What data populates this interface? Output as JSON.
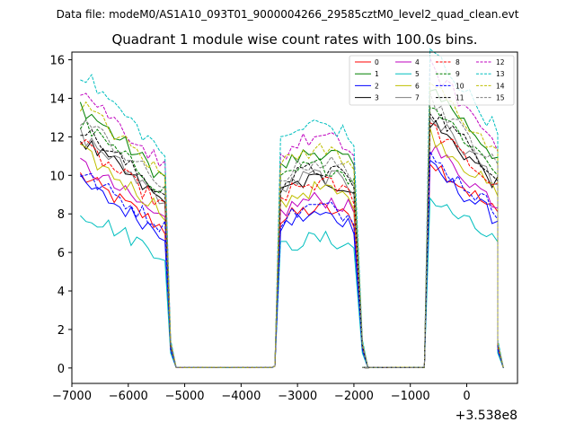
{
  "header_text": "Data file: modeM0/AS1A10_093T01_9000004266_29585cztM0_level2_quad_clean.evt",
  "chart_data": {
    "type": "line",
    "title": "Quadrant 1 module wise count rates with 100.0s bins.",
    "xlabel": "",
    "ylabel": "",
    "x_offset_label": "+3.538e8",
    "xlim": [
      -7000,
      900
    ],
    "ylim": [
      -0.8,
      16.4
    ],
    "x_ticks": [
      -7000,
      -6000,
      -5000,
      -4000,
      -3000,
      -2000,
      -1000,
      0
    ],
    "x_tick_labels": [
      "−7000",
      "−6000",
      "−5000",
      "−4000",
      "−3000",
      "−2000",
      "−1000",
      "0"
    ],
    "y_ticks": [
      0,
      2,
      4,
      6,
      8,
      10,
      12,
      14,
      16
    ],
    "y_tick_labels": [
      "0",
      "2",
      "4",
      "6",
      "8",
      "10",
      "12",
      "14",
      "16"
    ],
    "grid": false,
    "legend_position": "top-right",
    "legend_columns": 4,
    "segments": [
      {
        "start": -6850,
        "end": -5350,
        "drop_to": -5250
      },
      {
        "start": -3300,
        "end": -1950,
        "drop_to": -1850
      },
      {
        "start": -650,
        "end": 550,
        "drop_to": 550
      }
    ],
    "zero_ranges": [
      [
        -5150,
        -3450
      ],
      [
        -1850,
        -750
      ]
    ],
    "series": [
      {
        "name": "0",
        "color": "#ff0000",
        "dash": "solid",
        "level": 8.0
      },
      {
        "name": "1",
        "color": "#008000",
        "dash": "solid",
        "level": 10.9
      },
      {
        "name": "2",
        "color": "#0000ff",
        "dash": "solid",
        "level": 7.7
      },
      {
        "name": "3",
        "color": "#000000",
        "dash": "solid",
        "level": 9.5
      },
      {
        "name": "4",
        "color": "#bf00bf",
        "dash": "solid",
        "level": 8.5
      },
      {
        "name": "5",
        "color": "#00bfbf",
        "dash": "solid",
        "level": 6.5
      },
      {
        "name": "6",
        "color": "#bfbf00",
        "dash": "solid",
        "level": 9.0
      },
      {
        "name": "7",
        "color": "#808080",
        "dash": "solid",
        "level": 9.7
      },
      {
        "name": "8",
        "color": "#ff0000",
        "dash": "dashed",
        "level": 9.3
      },
      {
        "name": "9",
        "color": "#008000",
        "dash": "dashed",
        "level": 10.2
      },
      {
        "name": "10",
        "color": "#0000ff",
        "dash": "dashed",
        "level": 8.1
      },
      {
        "name": "11",
        "color": "#000000",
        "dash": "dashed",
        "level": 10.0
      },
      {
        "name": "12",
        "color": "#bf00bf",
        "dash": "dashed",
        "level": 11.6
      },
      {
        "name": "13",
        "color": "#00bfbf",
        "dash": "dashed",
        "level": 12.3
      },
      {
        "name": "14",
        "color": "#bfbf00",
        "dash": "dashed",
        "level": 11.0
      },
      {
        "name": "15",
        "color": "#808080",
        "dash": "dashed",
        "level": 10.4
      }
    ]
  }
}
